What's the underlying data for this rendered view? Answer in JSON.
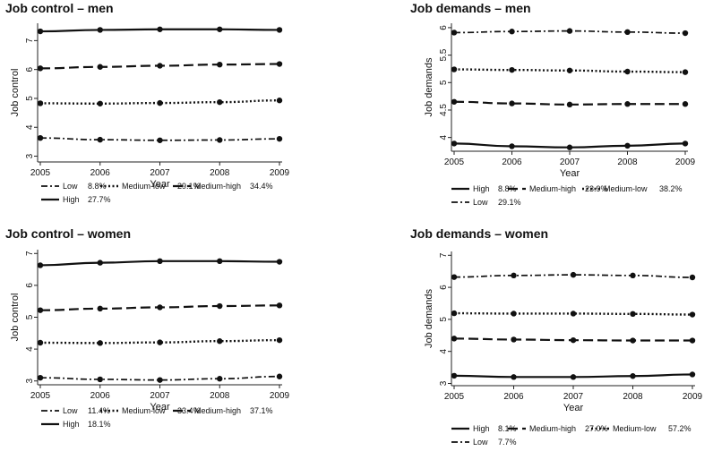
{
  "chart_data": [
    {
      "type": "line",
      "title": "Job control – men",
      "xlabel": "Year",
      "ylabel": "Job control",
      "x": [
        2005,
        2006,
        2007,
        2008,
        2009
      ],
      "xticks": [
        "2005",
        "2006",
        "2007",
        "2008",
        "2009"
      ],
      "ylim": [
        2.8,
        7.6
      ],
      "yticks": [
        3,
        4,
        5,
        6,
        7
      ],
      "series": [
        {
          "name": "High",
          "pct": "27.7%",
          "style": "solid",
          "values": [
            7.32,
            7.37,
            7.39,
            7.39,
            7.37
          ]
        },
        {
          "name": "Medium-high",
          "pct": "34.4%",
          "style": "dash",
          "values": [
            6.04,
            6.09,
            6.13,
            6.17,
            6.19
          ]
        },
        {
          "name": "Medium-low",
          "pct": "29.1%",
          "style": "dot",
          "values": [
            4.83,
            4.82,
            4.84,
            4.87,
            4.93
          ]
        },
        {
          "name": "Low",
          "pct": "8.8%",
          "style": "dashdot",
          "values": [
            3.63,
            3.57,
            3.55,
            3.56,
            3.6
          ]
        }
      ],
      "legend_order": [
        "Low",
        "Medium-low",
        "Medium-high",
        "High"
      ]
    },
    {
      "type": "line",
      "title": "Job demands – men",
      "xlabel": "Year",
      "ylabel": "Job demands",
      "x": [
        2005,
        2006,
        2007,
        2008,
        2009
      ],
      "xticks": [
        "2005",
        "2006",
        "2007",
        "2008",
        "2009"
      ],
      "ylim": [
        3.75,
        6.08
      ],
      "yticks": [
        4,
        4.5,
        5,
        5.5,
        6
      ],
      "series": [
        {
          "name": "High",
          "pct": "8.8%",
          "style": "solid",
          "values": [
            3.89,
            3.84,
            3.82,
            3.85,
            3.89
          ]
        },
        {
          "name": "Medium-high",
          "pct": "23.9%",
          "style": "dash",
          "values": [
            4.65,
            4.62,
            4.6,
            4.61,
            4.61
          ]
        },
        {
          "name": "Medium-low",
          "pct": "38.2%",
          "style": "dot",
          "values": [
            5.24,
            5.23,
            5.22,
            5.2,
            5.19
          ]
        },
        {
          "name": "Low",
          "pct": "29.1%",
          "style": "dashdot",
          "values": [
            5.91,
            5.93,
            5.94,
            5.92,
            5.9
          ]
        }
      ],
      "legend_order": [
        "High",
        "Medium-high",
        "Medium-low",
        "Low"
      ]
    },
    {
      "type": "line",
      "title": "Job control – women",
      "xlabel": "Year",
      "ylabel": "Job control",
      "x": [
        2005,
        2006,
        2007,
        2008,
        2009
      ],
      "xticks": [
        "2005",
        "2006",
        "2007",
        "2008",
        "2009"
      ],
      "ylim": [
        2.88,
        7.12
      ],
      "yticks": [
        3,
        4,
        5,
        6,
        7
      ],
      "series": [
        {
          "name": "High",
          "pct": "18.1%",
          "style": "solid",
          "values": [
            6.63,
            6.71,
            6.76,
            6.76,
            6.74
          ]
        },
        {
          "name": "Medium-high",
          "pct": "37.1%",
          "style": "dash",
          "values": [
            5.22,
            5.27,
            5.31,
            5.35,
            5.37
          ]
        },
        {
          "name": "Medium-low",
          "pct": "33.4%",
          "style": "dot",
          "values": [
            4.2,
            4.19,
            4.21,
            4.25,
            4.28
          ]
        },
        {
          "name": "Low",
          "pct": "11.4%",
          "style": "dashdot",
          "values": [
            3.1,
            3.05,
            3.03,
            3.07,
            3.14
          ]
        }
      ],
      "legend_order": [
        "Low",
        "Medium-low",
        "Medium-high",
        "High"
      ]
    },
    {
      "type": "line",
      "title": "Job demands – women",
      "xlabel": "Year",
      "ylabel": "Job demands",
      "x": [
        2005,
        2006,
        2007,
        2008,
        2009
      ],
      "xticks": [
        "2005",
        "2006",
        "2007",
        "2008",
        "2009"
      ],
      "ylim": [
        2.93,
        7.12
      ],
      "yticks": [
        3,
        4,
        5,
        6,
        7
      ],
      "series": [
        {
          "name": "High",
          "pct": "8.1%",
          "style": "solid",
          "values": [
            3.24,
            3.2,
            3.2,
            3.23,
            3.28
          ]
        },
        {
          "name": "Medium-high",
          "pct": "27.0%",
          "style": "dash",
          "values": [
            4.4,
            4.37,
            4.35,
            4.34,
            4.34
          ]
        },
        {
          "name": "Medium-low",
          "pct": "57.2%",
          "style": "dot",
          "values": [
            5.19,
            5.18,
            5.18,
            5.17,
            5.15
          ]
        },
        {
          "name": "Low",
          "pct": "7.7%",
          "style": "dashdot",
          "values": [
            6.32,
            6.37,
            6.39,
            6.37,
            6.31
          ]
        }
      ],
      "legend_order": [
        "High",
        "Medium-high",
        "Medium-low",
        "Low"
      ]
    }
  ]
}
